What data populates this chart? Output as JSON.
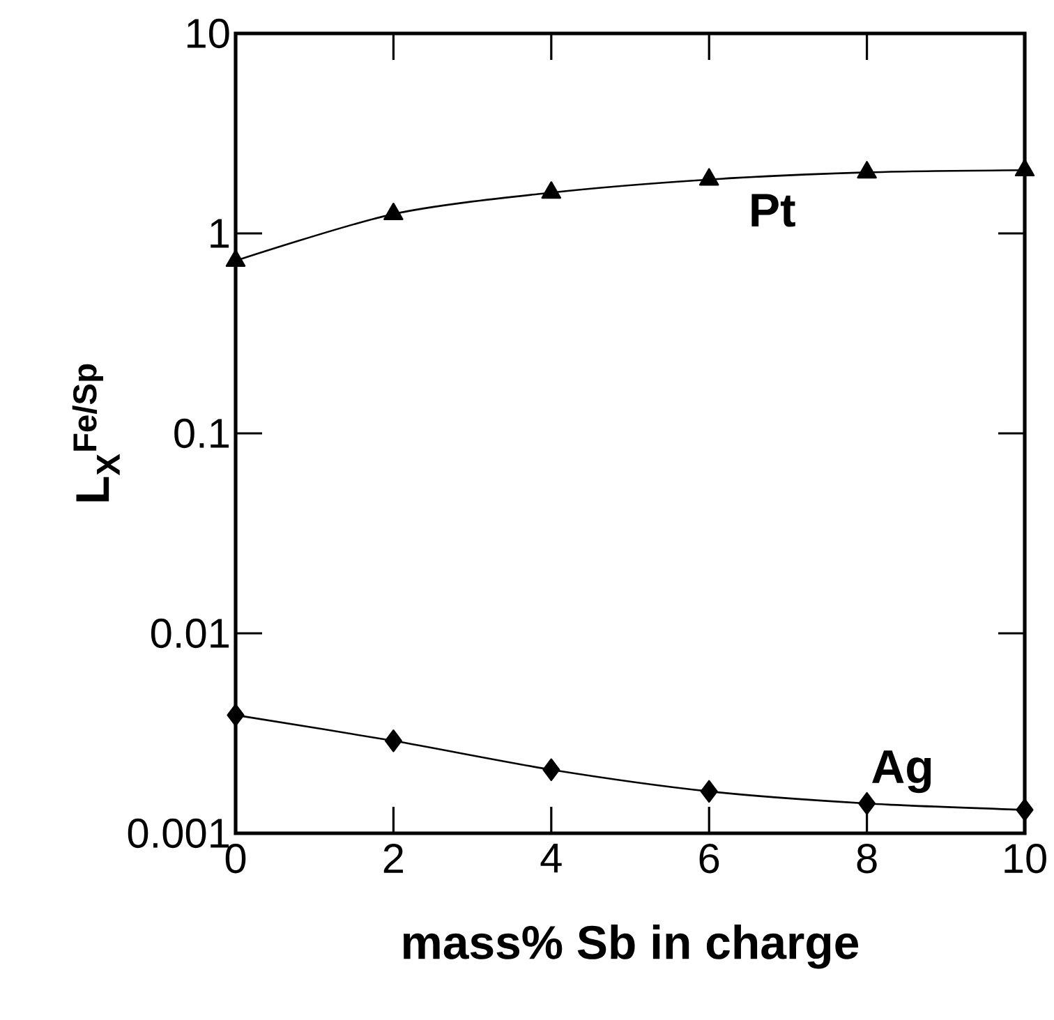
{
  "chart_data": {
    "type": "line",
    "xlabel": "mass% Sb in charge",
    "ylabel": "L$_{X}$$^{Fe/Sp}$",
    "x": [
      0,
      2,
      4,
      6,
      8,
      10
    ],
    "xlim": [
      0,
      10
    ],
    "xticks": [
      0,
      2,
      4,
      6,
      8,
      10
    ],
    "ylim": [
      0.001,
      10
    ],
    "yticks": [
      0.001,
      0.01,
      0.1,
      1,
      10
    ],
    "log": "y",
    "grid": false,
    "series": [
      {
        "name": "Pt",
        "color": "#000000",
        "marker": "triangle",
        "values": [
          0.73,
          1.25,
          1.6,
          1.86,
          2.02,
          2.07
        ]
      },
      {
        "name": "Ag",
        "color": "#000000",
        "marker": "diamond",
        "values": [
          0.0039,
          0.0029,
          0.00208,
          0.00162,
          0.00141,
          0.00131
        ]
      }
    ]
  }
}
